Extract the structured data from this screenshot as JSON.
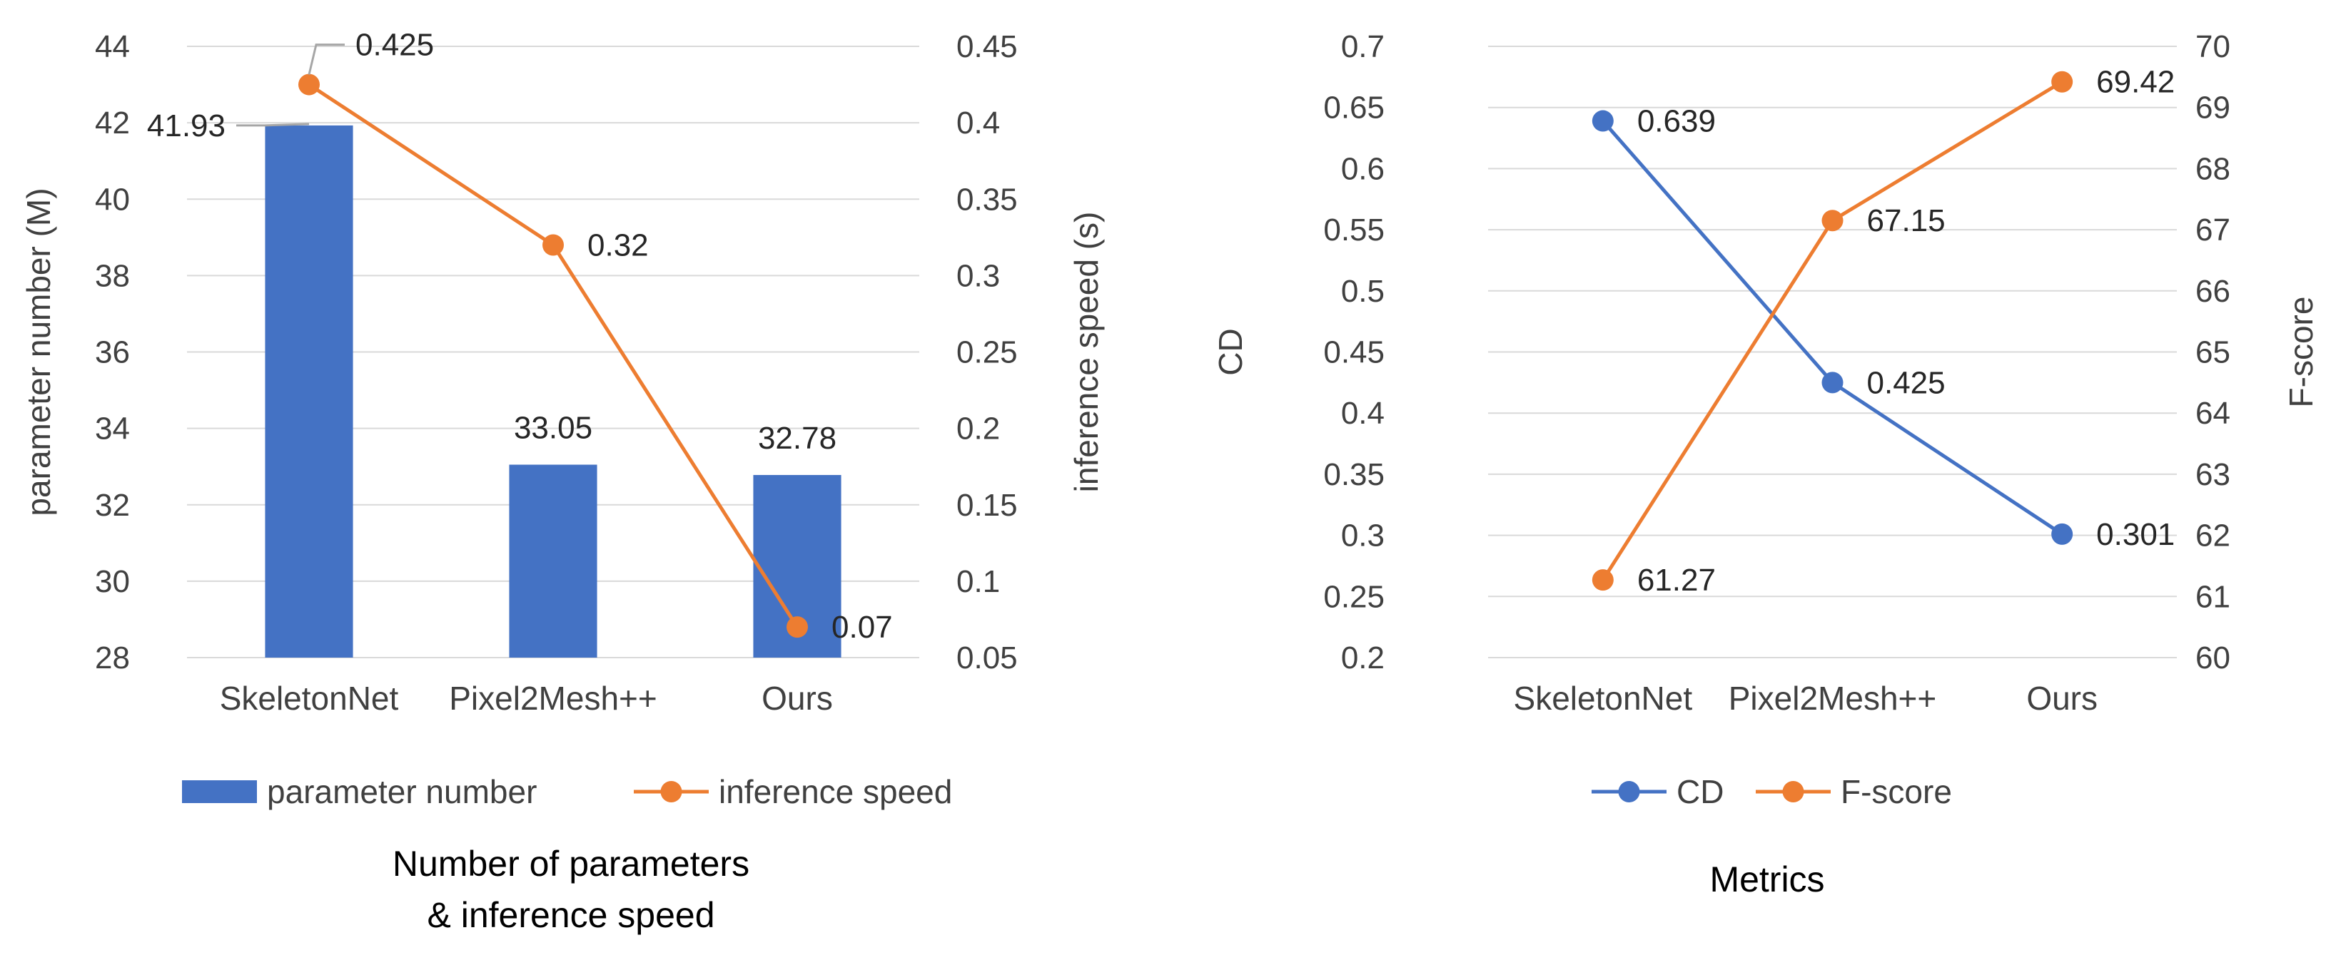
{
  "chart_data": [
    {
      "type": "bar+line",
      "caption": [
        "Number of parameters",
        "& inference speed"
      ],
      "categories": [
        "SkeletonNet",
        "Pixel2Mesh++",
        "Ours"
      ],
      "series": [
        {
          "name": "parameter number",
          "kind": "bar",
          "axis": "left",
          "color": "#4472C4",
          "values": [
            41.93,
            33.05,
            32.78
          ],
          "labels": [
            "41.93",
            "33.05",
            "32.78"
          ]
        },
        {
          "name": "inference speed",
          "kind": "line",
          "axis": "right",
          "color": "#ED7D31",
          "values": [
            0.425,
            0.32,
            0.07
          ],
          "labels": [
            "0.425",
            "0.32",
            "0.07"
          ]
        }
      ],
      "left_axis": {
        "title": "parameter number (M)",
        "min": 28,
        "max": 44,
        "ticks": [
          "28",
          "30",
          "32",
          "34",
          "36",
          "38",
          "40",
          "42",
          "44"
        ]
      },
      "right_axis": {
        "title": "inference speed (s)",
        "min": 0.05,
        "max": 0.45,
        "ticks": [
          "0.05",
          "0.1",
          "0.15",
          "0.2",
          "0.25",
          "0.3",
          "0.35",
          "0.4",
          "0.45"
        ]
      },
      "grid": true,
      "legend_position": "bottom"
    },
    {
      "type": "line",
      "caption": [
        "Metrics"
      ],
      "categories": [
        "SkeletonNet",
        "Pixel2Mesh++",
        "Ours"
      ],
      "series": [
        {
          "name": "CD",
          "kind": "line",
          "axis": "left",
          "color": "#4472C4",
          "values": [
            0.639,
            0.425,
            0.301
          ],
          "labels": [
            "0.639",
            "0.425",
            "0.301"
          ]
        },
        {
          "name": "F-score",
          "kind": "line",
          "axis": "right",
          "color": "#ED7D31",
          "values": [
            61.27,
            67.15,
            69.42
          ],
          "labels": [
            "61.27",
            "67.15",
            "69.42"
          ]
        }
      ],
      "left_axis": {
        "title": "CD",
        "min": 0.2,
        "max": 0.7,
        "ticks": [
          "0.2",
          "0.25",
          "0.3",
          "0.35",
          "0.4",
          "0.45",
          "0.5",
          "0.55",
          "0.6",
          "0.65",
          "0.7"
        ]
      },
      "right_axis": {
        "title": "F-score",
        "min": 60,
        "max": 70,
        "ticks": [
          "60",
          "61",
          "62",
          "63",
          "64",
          "65",
          "66",
          "67",
          "68",
          "69",
          "70"
        ]
      },
      "grid": true,
      "legend_position": "bottom"
    }
  ]
}
